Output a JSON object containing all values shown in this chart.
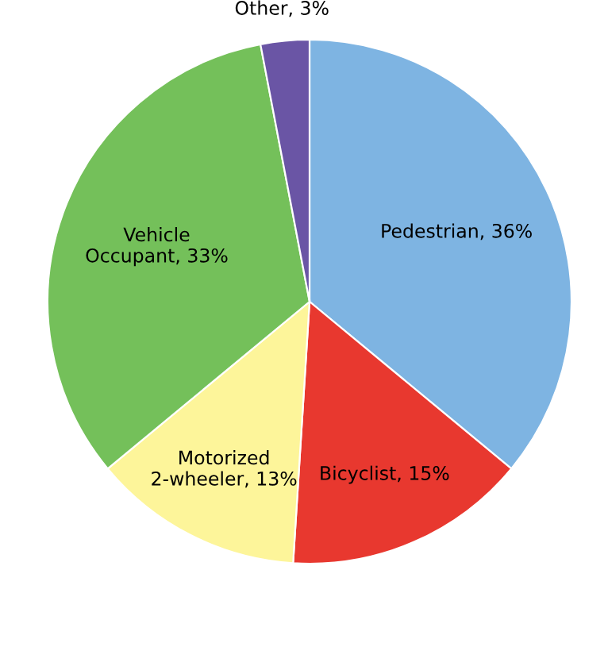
{
  "chart_data": {
    "type": "pie",
    "categories": [
      "Pedestrian",
      "Bicyclist",
      "Motorized 2-wheeler",
      "Vehicle Occupant",
      "Other"
    ],
    "values": [
      36,
      15,
      13,
      33,
      3
    ],
    "value_labels": [
      "36%",
      "15%",
      "13%",
      "33%",
      "3%"
    ],
    "colors": [
      "#7eb4e2",
      "#e8382f",
      "#fdf59a",
      "#74c05a",
      "#6a55a5"
    ]
  }
}
